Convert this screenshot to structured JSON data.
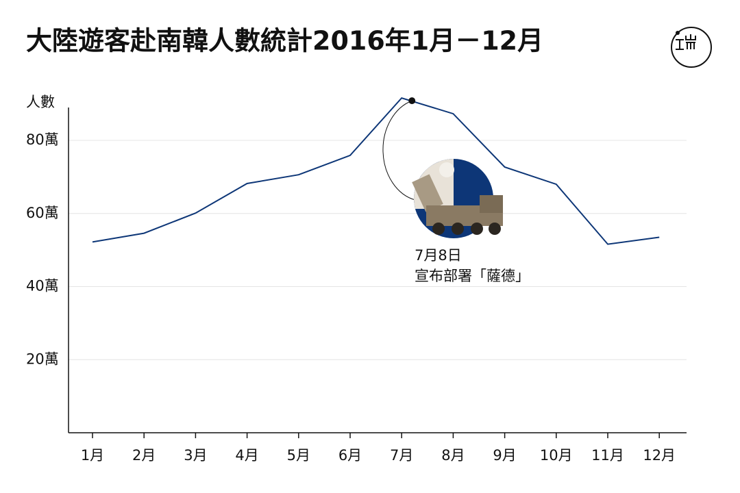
{
  "chart_data": {
    "type": "line",
    "title": "大陸遊客赴南韓人數統計2016年1月－12月",
    "y_label": "人數",
    "categories": [
      "1月",
      "2月",
      "3月",
      "4月",
      "5月",
      "6月",
      "7月",
      "8月",
      "9月",
      "10月",
      "11月",
      "12月"
    ],
    "series": [
      {
        "name": "大陸遊客",
        "color": "#0d3677",
        "values": [
          52.2,
          54.6,
          60.1,
          68.2,
          70.6,
          75.9,
          91.6,
          87.3,
          72.7,
          68.0,
          51.6,
          53.5
        ]
      }
    ],
    "ylim": [
      0,
      89
    ],
    "yticks": [
      {
        "value": 20,
        "label": "20萬"
      },
      {
        "value": 40,
        "label": "40萬"
      },
      {
        "value": 60,
        "label": "60萬"
      },
      {
        "value": 80,
        "label": "80萬"
      }
    ],
    "grid": true,
    "annotation": {
      "date": "7月8日",
      "text": "宣布部署「薩德」"
    }
  }
}
